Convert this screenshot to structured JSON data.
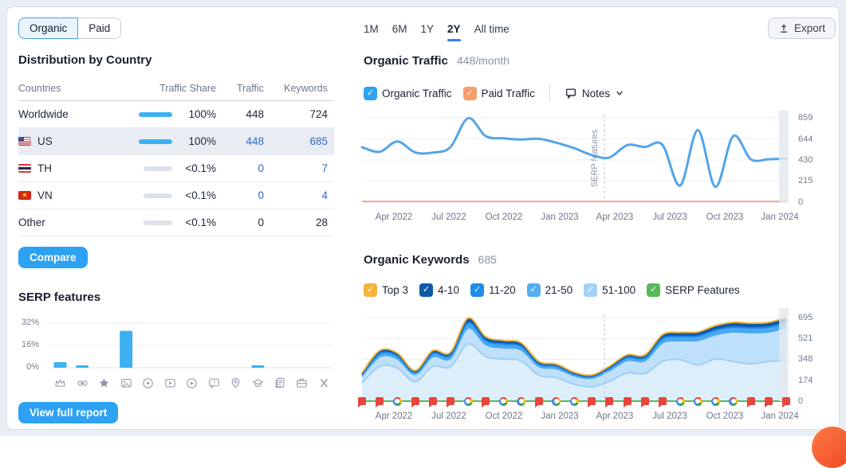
{
  "colors": {
    "accent_blue": "#2da1f2",
    "bar_blue": "#3eb1f2",
    "bar_gray": "#dde2e9",
    "link_blue": "#3667c5",
    "traffic_line": "#54a5e6",
    "paid_line": "#f2b090",
    "timeline_green": "#5cb85c",
    "note_flag_red": "#e8453c",
    "legend": {
      "organic": "#2ea2f3",
      "paid": "#f79d67",
      "top3": "#f3b33c",
      "r410": "#0f5aa7",
      "r1120": "#1f8ced",
      "r2150": "#54adf2",
      "r51100": "#a3d2f6",
      "serp": "#58b957"
    }
  },
  "left_panel": {
    "toggle": {
      "organic": "Organic",
      "paid": "Paid",
      "selected": "Organic"
    },
    "country_distribution": {
      "title": "Distribution by Country",
      "columns": [
        "Countries",
        "Traffic Share",
        "Traffic",
        "Keywords"
      ],
      "rows": [
        {
          "country": "Worldwide",
          "flag": "",
          "share": "100%",
          "share_full": true,
          "traffic": "448",
          "keywords": "724",
          "selected": false,
          "link": false
        },
        {
          "country": "US",
          "flag": "us",
          "share": "100%",
          "share_full": true,
          "traffic": "448",
          "keywords": "685",
          "selected": true,
          "link": true
        },
        {
          "country": "TH",
          "flag": "th",
          "share": "<0.1%",
          "share_full": false,
          "traffic": "0",
          "keywords": "7",
          "selected": false,
          "link": true
        },
        {
          "country": "VN",
          "flag": "vn",
          "share": "<0.1%",
          "share_full": false,
          "traffic": "0",
          "keywords": "4",
          "selected": false,
          "link": true
        },
        {
          "country": "Other",
          "flag": "",
          "share": "<0.1%",
          "share_full": false,
          "traffic": "0",
          "keywords": "28",
          "selected": false,
          "link": false
        }
      ]
    },
    "compare_button": "Compare",
    "serp_features_title": "SERP features",
    "view_full_report_button": "View full report",
    "serp_icons": [
      "sitelinks",
      "url",
      "reviews",
      "image-pack",
      "video",
      "featured-video",
      "video-carousel",
      "people-also-ask",
      "local-pack",
      "knowledge-panel",
      "faq",
      "jobs",
      "twitter"
    ]
  },
  "right_panel": {
    "time_tabs": [
      "1M",
      "6M",
      "1Y",
      "2Y",
      "All time"
    ],
    "active_tab": "2Y",
    "export_button": "Export",
    "organic_traffic": {
      "title": "Organic Traffic",
      "value": "448/month",
      "legend": [
        {
          "label": "Organic Traffic",
          "checked": true
        },
        {
          "label": "Paid Traffic",
          "checked": true
        }
      ],
      "notes_label": "Notes"
    },
    "organic_keywords": {
      "title": "Organic Keywords",
      "value": "685",
      "legend": [
        "Top 3",
        "4-10",
        "11-20",
        "21-50",
        "51-100",
        "SERP Features"
      ]
    }
  },
  "chart_data": [
    {
      "id": "organic-traffic-trend",
      "type": "line",
      "title": "Organic Traffic",
      "x_start": "Feb 2022",
      "x_end": "Feb 2024",
      "x_tick_labels": [
        "Apr 2022",
        "Jul 2022",
        "Oct 2022",
        "Jan 2023",
        "Apr 2023",
        "Jul 2023",
        "Oct 2023",
        "Jan 2024"
      ],
      "y_ticks": [
        0,
        215,
        430,
        644,
        859
      ],
      "ylim": [
        0,
        859
      ],
      "grid": true,
      "series": [
        {
          "name": "Organic Traffic",
          "values": [
            560,
            512,
            618,
            507,
            505,
            560,
            855,
            672,
            650,
            638,
            645,
            605,
            550,
            480,
            455,
            580,
            562,
            583,
            170,
            733,
            155,
            672,
            437,
            437,
            445
          ]
        },
        {
          "name": "Paid Traffic",
          "values": [
            0,
            0,
            0,
            0,
            0,
            0,
            0,
            0,
            0,
            0,
            0,
            0,
            0,
            0,
            0,
            0,
            0,
            0,
            0,
            0,
            0,
            0,
            0,
            0,
            0
          ]
        }
      ],
      "annotation": {
        "label": "SERP features",
        "style": "dashed-vertical",
        "x_fraction": 0.5714
      }
    },
    {
      "id": "organic-keywords-trend",
      "type": "area",
      "title": "Organic Keywords",
      "x_start": "Feb 2022",
      "x_end": "Feb 2024",
      "x_tick_labels": [
        "Apr 2022",
        "Jul 2022",
        "Oct 2022",
        "Jan 2023",
        "Apr 2023",
        "Jul 2023",
        "Oct 2023",
        "Jan 2024"
      ],
      "y_ticks": [
        0,
        174,
        348,
        521,
        695
      ],
      "ylim": [
        0,
        695
      ],
      "grid": true,
      "stacking": "cumulative-top-edges-bottom-to-top",
      "series": [
        {
          "name": "51-100",
          "values": [
            150,
            290,
            275,
            160,
            290,
            285,
            475,
            370,
            350,
            335,
            215,
            195,
            140,
            120,
            165,
            235,
            230,
            330,
            345,
            300,
            350,
            330,
            310,
            330,
            340
          ]
        },
        {
          "name": "21-50",
          "values": [
            207,
            370,
            352,
            224,
            370,
            356,
            607,
            471,
            444,
            427,
            290,
            271,
            211,
            192,
            255,
            339,
            337,
            486,
            503,
            506,
            553,
            576,
            570,
            576,
            612
          ]
        },
        {
          "name": "11-20",
          "values": [
            221,
            395,
            376,
            240,
            395,
            381,
            649,
            503,
            475,
            456,
            310,
            290,
            226,
            205,
            273,
            362,
            360,
            519,
            538,
            541,
            590,
            616,
            609,
            616,
            653
          ]
        },
        {
          "name": "4-10",
          "values": [
            230,
            412,
            392,
            250,
            412,
            397,
            676,
            524,
            495,
            475,
            323,
            302,
            235,
            214,
            284,
            377,
            375,
            541,
            561,
            564,
            615,
            642,
            635,
            642,
            681
          ]
        },
        {
          "name": "Top 3",
          "values": [
            235,
            420,
            400,
            255,
            420,
            405,
            690,
            535,
            505,
            485,
            330,
            308,
            240,
            218,
            290,
            385,
            383,
            552,
            572,
            575,
            628,
            655,
            648,
            655,
            695
          ]
        }
      ],
      "annotation": {
        "style": "dashed-vertical",
        "x_fraction": 0.5714
      },
      "notes_timeline": [
        "flag",
        "flag",
        "G",
        "flag",
        "flag",
        "flag",
        "G",
        "flag",
        "G",
        "G",
        "flag",
        "G",
        "G",
        "flag",
        "flag",
        "flag",
        "flag",
        "flag",
        "G",
        "G",
        "G",
        "G",
        "flag",
        "flag",
        "flag"
      ]
    },
    {
      "id": "serp-features-share",
      "type": "bar",
      "title": "SERP features",
      "y_tick_labels": [
        "32%",
        "16%",
        "0%"
      ],
      "ylim_pct": [
        0,
        32
      ],
      "categories": [
        "sitelinks",
        "url",
        "reviews",
        "image-pack",
        "video",
        "featured-video",
        "video-carousel",
        "people-also-ask",
        "local-pack",
        "knowledge-panel",
        "faq",
        "jobs",
        "twitter"
      ],
      "values_pct": [
        4,
        1.7,
        0,
        26.5,
        0,
        0,
        0,
        0,
        0,
        1.7,
        0,
        0,
        0
      ]
    }
  ]
}
